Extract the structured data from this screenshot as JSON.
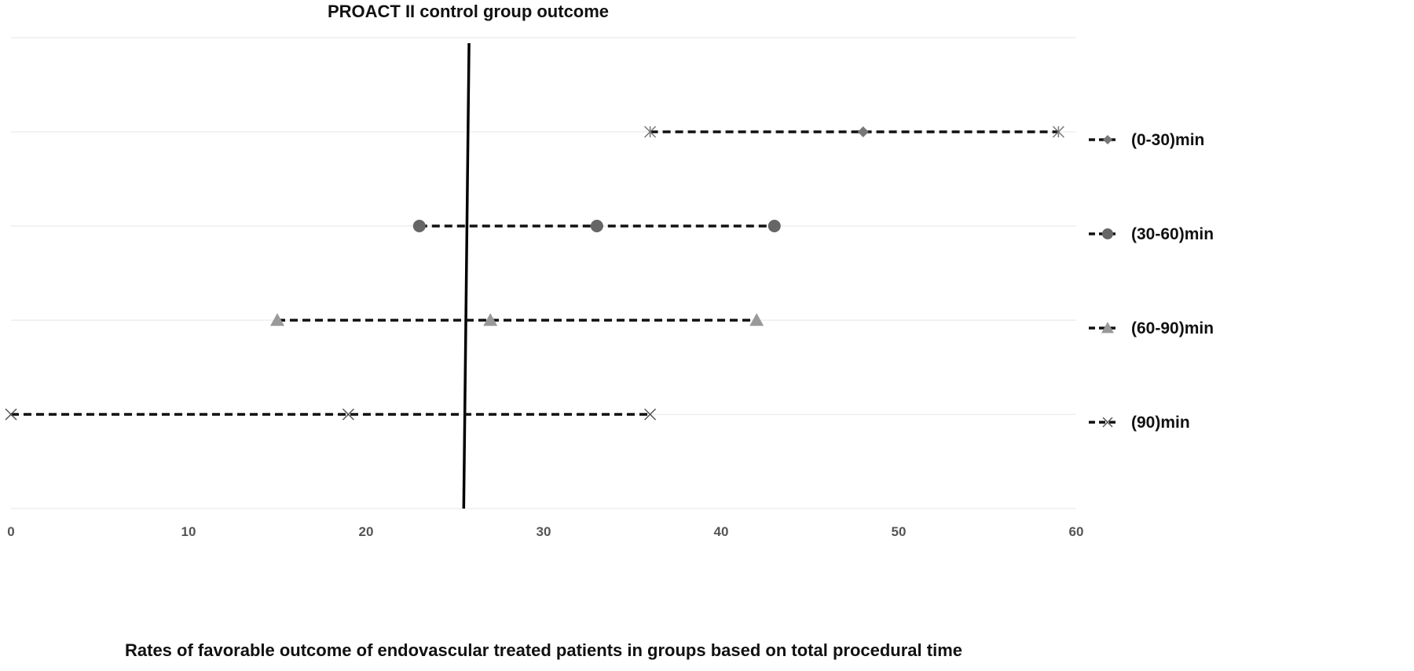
{
  "chart_data": {
    "type": "scatter",
    "title": "PROACT II control group outcome",
    "xlabel": "Rates of favorable outcome of endovascular treated patients in groups based on total procedural time",
    "ylabel": "",
    "xlim": [
      0,
      60
    ],
    "xticks": [
      0,
      10,
      20,
      30,
      40,
      50,
      60
    ],
    "grid": "horizontal",
    "legend_position": "right",
    "reference_line": {
      "x_top": 25.8,
      "x_bottom": 25.5
    },
    "series": [
      {
        "name": "(0-30)min",
        "marker": "diamond",
        "color": "#777777",
        "level": 4,
        "points": [
          {
            "x": 36,
            "marker": "star"
          },
          {
            "x": 48,
            "marker": "diamond"
          },
          {
            "x": 59,
            "marker": "star"
          }
        ]
      },
      {
        "name": "(30-60)min",
        "marker": "circle",
        "color": "#666666",
        "level": 3,
        "points": [
          {
            "x": 23,
            "marker": "circle"
          },
          {
            "x": 33,
            "marker": "circle"
          },
          {
            "x": 43,
            "marker": "circle"
          }
        ]
      },
      {
        "name": "(60-90)min",
        "marker": "triangle",
        "color": "#999999",
        "level": 2,
        "points": [
          {
            "x": 15,
            "marker": "triangle"
          },
          {
            "x": 27,
            "marker": "triangle"
          },
          {
            "x": 42,
            "marker": "triangle"
          }
        ]
      },
      {
        "name": "(90)min",
        "marker": "x",
        "color": "#555555",
        "level": 1,
        "points": [
          {
            "x": 0,
            "marker": "x"
          },
          {
            "x": 19,
            "marker": "x"
          },
          {
            "x": 36,
            "marker": "x"
          }
        ]
      }
    ]
  }
}
